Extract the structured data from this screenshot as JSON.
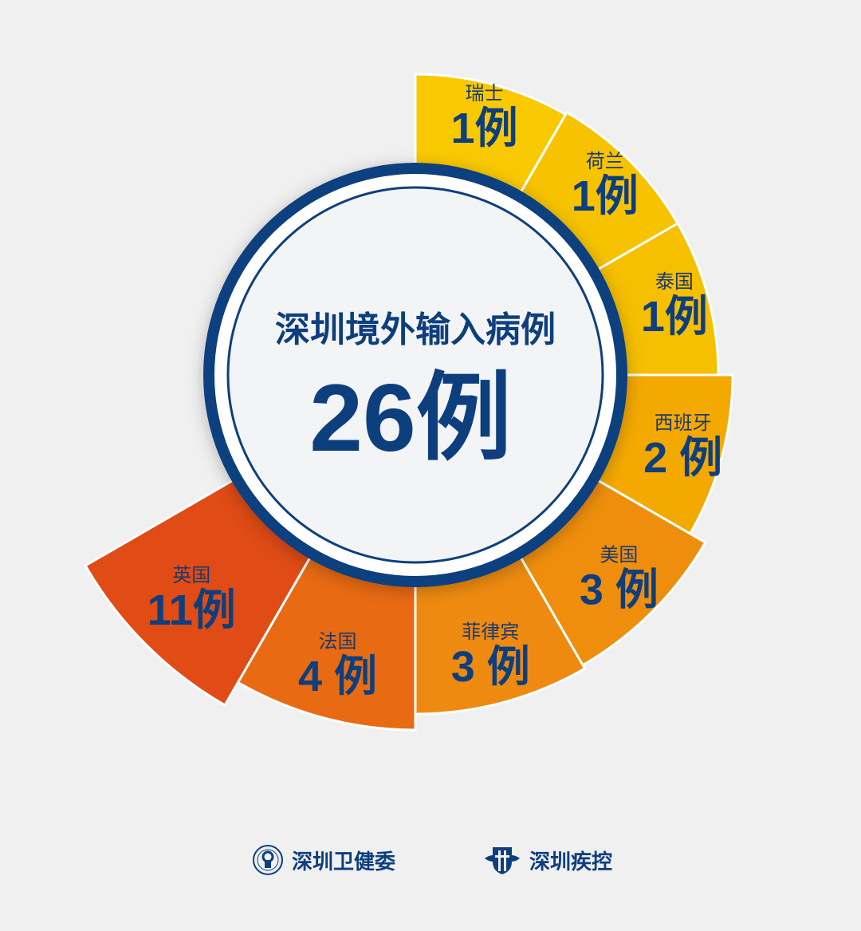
{
  "chart_data": {
    "type": "pie",
    "variant": "radial-segments",
    "title": "深圳境外输入病例",
    "total_label": "26例",
    "unit": "例",
    "categories": [
      "瑞士",
      "荷兰",
      "泰国",
      "西班牙",
      "美国",
      "菲律宾",
      "法国",
      "英国"
    ],
    "values": [
      1,
      1,
      1,
      2,
      3,
      3,
      4,
      11
    ],
    "value_labels": [
      "1例",
      "1例",
      "1例",
      "2 例",
      "3 例",
      "3 例",
      "4 例",
      "11例"
    ],
    "colors": [
      "#f9c900",
      "#f7c300",
      "#f6bf00",
      "#f3a900",
      "#ef8e0c",
      "#ee8a10",
      "#e86a12",
      "#e04b16"
    ]
  },
  "colors": {
    "navy": "#0d3f7e",
    "background": "#f0f0f1"
  },
  "footer": {
    "org1": {
      "name": "深圳卫健委",
      "icon": "health-commission-seal-icon"
    },
    "org2": {
      "name": "深圳疾控",
      "icon": "cdc-shield-icon"
    }
  }
}
